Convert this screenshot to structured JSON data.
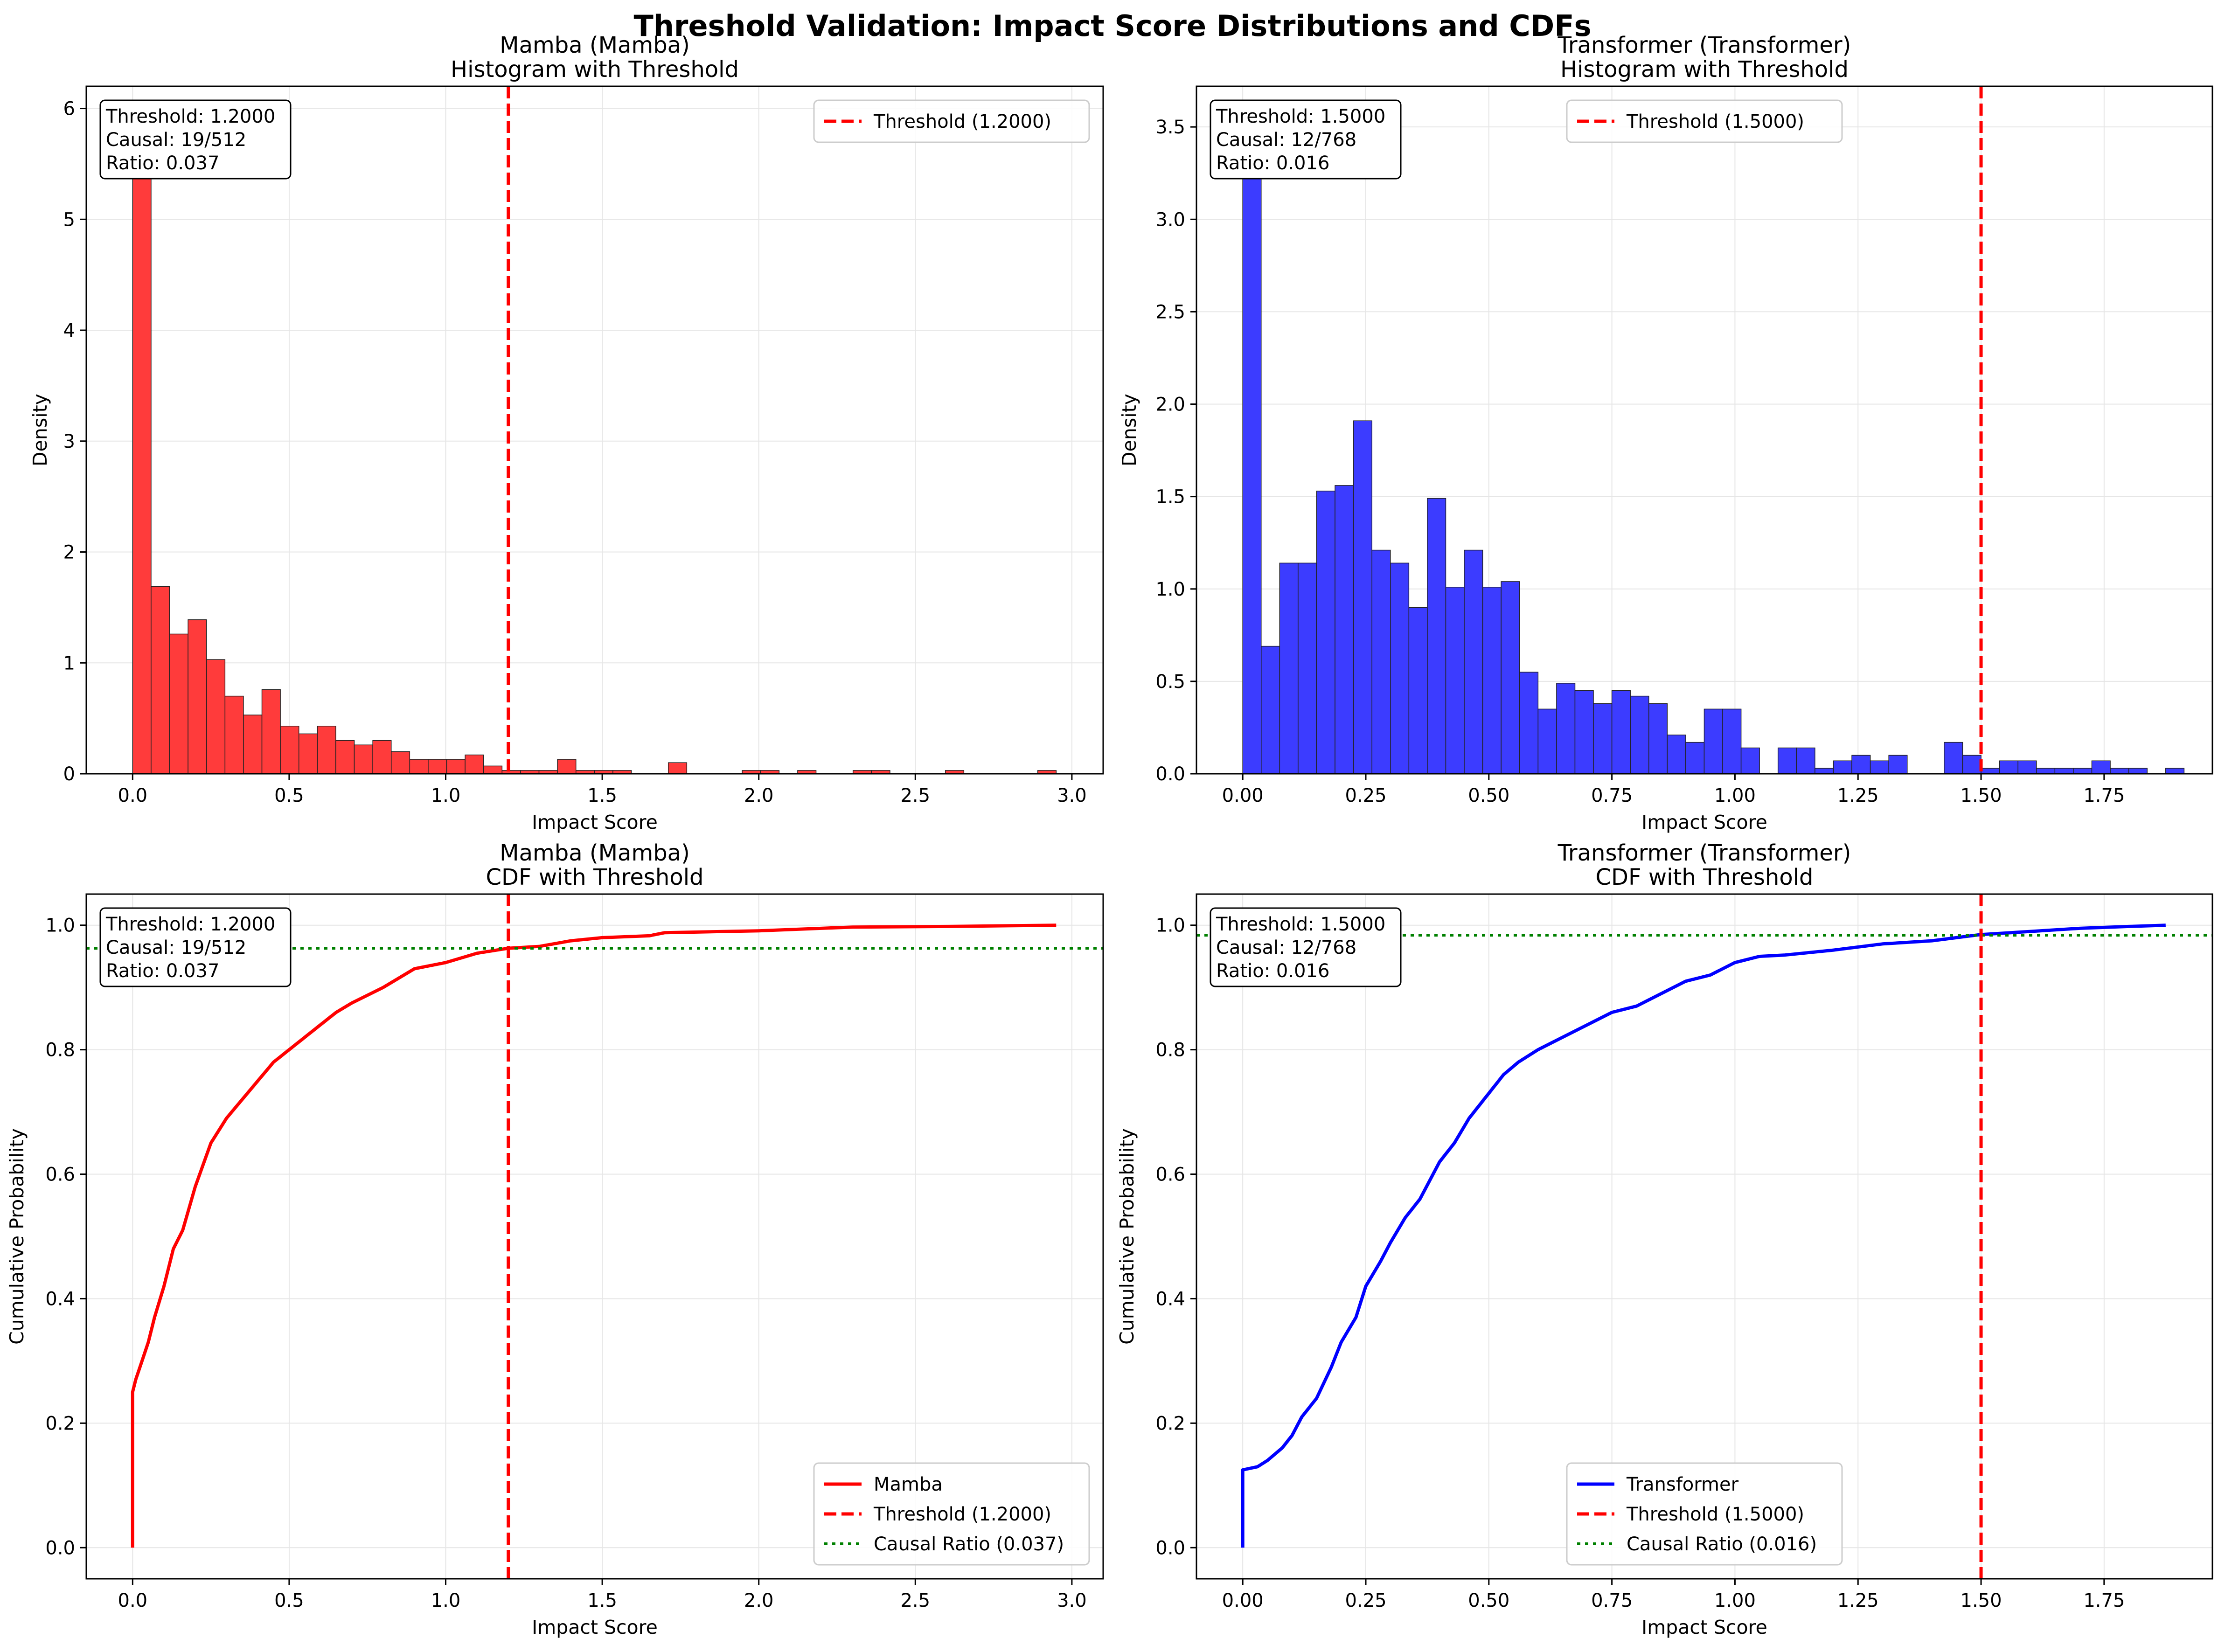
{
  "suptitle": "Threshold Validation: Impact Score Distributions and CDFs",
  "colors": {
    "mamba": "#ff0000",
    "transformer": "#0000ff",
    "mamba_fill": "#ff3b3b",
    "transformer_fill": "#3c3cff",
    "threshold": "#ff0000",
    "ratio": "#008000",
    "grid": "#e6e6e6"
  },
  "chart_data": [
    {
      "type": "bar",
      "title": "Mamba (Mamba)\nHistogram with Threshold",
      "xlabel": "Impact Score",
      "ylabel": "Density",
      "xlim": [
        -0.148,
        3.1
      ],
      "ylim": [
        0,
        6.2
      ],
      "xticks": [
        0.0,
        0.5,
        1.0,
        1.5,
        2.0,
        2.5,
        3.0
      ],
      "xtick_labels": [
        "0.0",
        "0.5",
        "1.0",
        "1.5",
        "2.0",
        "2.5",
        "3.0"
      ],
      "yticks": [
        0,
        1,
        2,
        3,
        4,
        5,
        6
      ],
      "ytick_labels": [
        "0",
        "1",
        "2",
        "3",
        "4",
        "5",
        "6"
      ],
      "bin_start": 0.0,
      "bin_width": 0.059,
      "values": [
        5.92,
        1.69,
        1.26,
        1.39,
        1.03,
        0.7,
        0.53,
        0.76,
        0.43,
        0.36,
        0.43,
        0.3,
        0.26,
        0.3,
        0.2,
        0.13,
        0.13,
        0.13,
        0.17,
        0.07,
        0.03,
        0.03,
        0.03,
        0.13,
        0.03,
        0.03,
        0.03,
        0.0,
        0.0,
        0.1,
        0.0,
        0.0,
        0.0,
        0.03,
        0.03,
        0.0,
        0.03,
        0.0,
        0.0,
        0.03,
        0.03,
        0.0,
        0.0,
        0.0,
        0.03,
        0.0,
        0.0,
        0.0,
        0.0,
        0.03
      ],
      "bar_color": "mamba_fill",
      "threshold": 1.2,
      "legend": {
        "location": "upper right",
        "entries": [
          {
            "label": "Threshold (1.2000)",
            "style": "dashed",
            "color": "threshold"
          }
        ]
      },
      "info_box": [
        "Threshold: 1.2000",
        "Causal: 19/512",
        "Ratio: 0.037"
      ],
      "grid": true
    },
    {
      "type": "bar",
      "title": "Transformer (Transformer)\nHistogram with Threshold",
      "xlabel": "Impact Score",
      "ylabel": "Density",
      "xlim": [
        -0.094,
        1.97
      ],
      "ylim": [
        0,
        3.72
      ],
      "xticks": [
        0.0,
        0.25,
        0.5,
        0.75,
        1.0,
        1.25,
        1.5,
        1.75
      ],
      "xtick_labels": [
        "0.00",
        "0.25",
        "0.50",
        "0.75",
        "1.00",
        "1.25",
        "1.50",
        "1.75"
      ],
      "yticks": [
        0.0,
        0.5,
        1.0,
        1.5,
        2.0,
        2.5,
        3.0,
        3.5
      ],
      "ytick_labels": [
        "0.0",
        "0.5",
        "1.0",
        "1.5",
        "2.0",
        "2.5",
        "3.0",
        "3.5"
      ],
      "bin_start": 0.0,
      "bin_width": 0.0375,
      "values": [
        3.57,
        0.69,
        1.14,
        1.14,
        1.53,
        1.56,
        1.91,
        1.21,
        1.14,
        0.9,
        1.49,
        1.01,
        1.21,
        1.01,
        1.04,
        0.55,
        0.35,
        0.49,
        0.45,
        0.38,
        0.45,
        0.42,
        0.38,
        0.21,
        0.17,
        0.35,
        0.35,
        0.14,
        0.0,
        0.14,
        0.14,
        0.03,
        0.07,
        0.1,
        0.07,
        0.1,
        0.0,
        0.0,
        0.17,
        0.1,
        0.03,
        0.07,
        0.07,
        0.03,
        0.03,
        0.03,
        0.07,
        0.03,
        0.03,
        0.0,
        0.03
      ],
      "bar_color": "transformer_fill",
      "threshold": 1.5,
      "legend": {
        "location": "upper center",
        "entries": [
          {
            "label": "Threshold (1.5000)",
            "style": "dashed",
            "color": "threshold"
          }
        ]
      },
      "info_box": [
        "Threshold: 1.5000",
        "Causal: 12/768",
        "Ratio: 0.016"
      ],
      "grid": true
    },
    {
      "type": "line",
      "title": "Mamba (Mamba)\nCDF with Threshold",
      "xlabel": "Impact Score",
      "ylabel": "Cumulative Probability",
      "xlim": [
        -0.148,
        3.1
      ],
      "ylim": [
        -0.05,
        1.05
      ],
      "xticks": [
        0.0,
        0.5,
        1.0,
        1.5,
        2.0,
        2.5,
        3.0
      ],
      "xtick_labels": [
        "0.0",
        "0.5",
        "1.0",
        "1.5",
        "2.0",
        "2.5",
        "3.0"
      ],
      "yticks": [
        0.0,
        0.2,
        0.4,
        0.6,
        0.8,
        1.0
      ],
      "ytick_labels": [
        "0.0",
        "0.2",
        "0.4",
        "0.6",
        "0.8",
        "1.0"
      ],
      "series": [
        {
          "name": "Mamba",
          "color": "mamba",
          "x": [
            0.0,
            0.0,
            0.01,
            0.03,
            0.05,
            0.07,
            0.1,
            0.13,
            0.16,
            0.2,
            0.25,
            0.3,
            0.35,
            0.4,
            0.45,
            0.5,
            0.55,
            0.6,
            0.65,
            0.7,
            0.8,
            0.9,
            1.0,
            1.1,
            1.2,
            1.3,
            1.4,
            1.5,
            1.65,
            1.7,
            2.0,
            2.3,
            2.6,
            2.95
          ],
          "y": [
            0.0,
            0.25,
            0.27,
            0.3,
            0.33,
            0.37,
            0.42,
            0.48,
            0.51,
            0.58,
            0.65,
            0.69,
            0.72,
            0.75,
            0.78,
            0.8,
            0.82,
            0.84,
            0.86,
            0.875,
            0.9,
            0.93,
            0.94,
            0.955,
            0.963,
            0.966,
            0.975,
            0.98,
            0.983,
            0.988,
            0.991,
            0.997,
            0.998,
            1.0
          ]
        }
      ],
      "threshold": 1.2,
      "causal_ratio_line": 0.963,
      "legend": {
        "location": "lower right",
        "entries": [
          {
            "label": "Mamba",
            "style": "solid",
            "color": "mamba"
          },
          {
            "label": "Threshold (1.2000)",
            "style": "dashed",
            "color": "threshold"
          },
          {
            "label": "Causal Ratio (0.037)",
            "style": "dotted",
            "color": "ratio"
          }
        ]
      },
      "info_box": [
        "Threshold: 1.2000",
        "Causal: 19/512",
        "Ratio: 0.037"
      ],
      "grid": true
    },
    {
      "type": "line",
      "title": "Transformer (Transformer)\nCDF with Threshold",
      "xlabel": "Impact Score",
      "ylabel": "Cumulative Probability",
      "xlim": [
        -0.094,
        1.97
      ],
      "ylim": [
        -0.05,
        1.05
      ],
      "xticks": [
        0.0,
        0.25,
        0.5,
        0.75,
        1.0,
        1.25,
        1.5,
        1.75
      ],
      "xtick_labels": [
        "0.00",
        "0.25",
        "0.50",
        "0.75",
        "1.00",
        "1.25",
        "1.50",
        "1.75"
      ],
      "yticks": [
        0.0,
        0.2,
        0.4,
        0.6,
        0.8,
        1.0
      ],
      "ytick_labels": [
        "0.0",
        "0.2",
        "0.4",
        "0.6",
        "0.8",
        "1.0"
      ],
      "series": [
        {
          "name": "Transformer",
          "color": "transformer",
          "x": [
            0.0,
            0.0,
            0.03,
            0.05,
            0.08,
            0.1,
            0.12,
            0.15,
            0.18,
            0.2,
            0.23,
            0.25,
            0.28,
            0.3,
            0.33,
            0.36,
            0.4,
            0.43,
            0.46,
            0.5,
            0.53,
            0.56,
            0.6,
            0.65,
            0.7,
            0.75,
            0.8,
            0.85,
            0.9,
            0.95,
            1.0,
            1.05,
            1.1,
            1.2,
            1.3,
            1.4,
            1.5,
            1.6,
            1.7,
            1.8,
            1.875
          ],
          "y": [
            0.0,
            0.125,
            0.13,
            0.14,
            0.16,
            0.18,
            0.21,
            0.24,
            0.29,
            0.33,
            0.37,
            0.42,
            0.46,
            0.49,
            0.53,
            0.56,
            0.62,
            0.65,
            0.69,
            0.73,
            0.76,
            0.78,
            0.8,
            0.82,
            0.84,
            0.86,
            0.87,
            0.89,
            0.91,
            0.92,
            0.94,
            0.95,
            0.952,
            0.96,
            0.97,
            0.975,
            0.985,
            0.99,
            0.995,
            0.998,
            1.0
          ]
        }
      ],
      "threshold": 1.5,
      "causal_ratio_line": 0.984,
      "legend": {
        "location": "lower center",
        "entries": [
          {
            "label": "Transformer",
            "style": "solid",
            "color": "transformer"
          },
          {
            "label": "Threshold (1.5000)",
            "style": "dashed",
            "color": "threshold"
          },
          {
            "label": "Causal Ratio (0.016)",
            "style": "dotted",
            "color": "ratio"
          }
        ]
      },
      "info_box": [
        "Threshold: 1.5000",
        "Causal: 12/768",
        "Ratio: 0.016"
      ],
      "grid": true
    }
  ]
}
